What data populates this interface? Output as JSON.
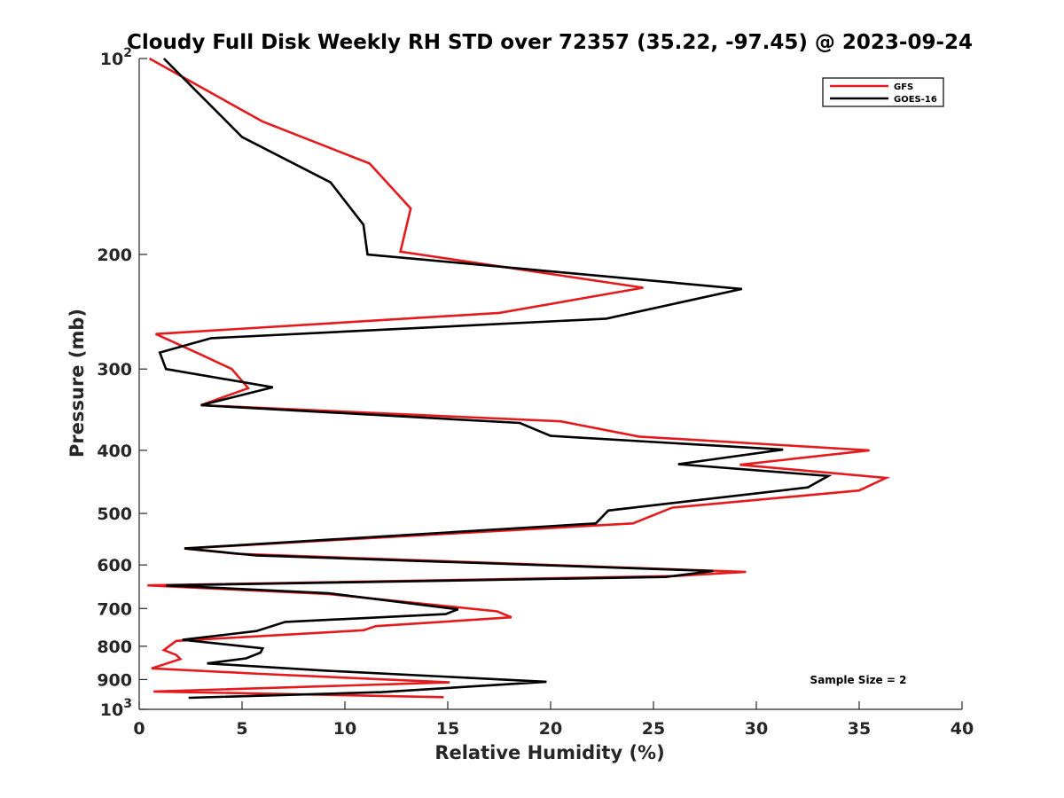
{
  "chart_data": {
    "type": "line",
    "title": "Cloudy Full Disk Weekly RH STD over 72357 (35.22, -97.45) @ 2023-09-24",
    "xlabel": "Relative Humidity (%)",
    "ylabel": "Pressure (mb)",
    "xlim": [
      0,
      40
    ],
    "ylim": [
      100,
      1000
    ],
    "yscale": "log",
    "y_reversed": true,
    "xticks": [
      0,
      5,
      10,
      15,
      20,
      25,
      30,
      35,
      40
    ],
    "yticks": [
      {
        "value": 100,
        "label": "10",
        "sup": "2"
      },
      {
        "value": 200,
        "label": "200"
      },
      {
        "value": 300,
        "label": "300"
      },
      {
        "value": 400,
        "label": "400"
      },
      {
        "value": 500,
        "label": "500"
      },
      {
        "value": 600,
        "label": "600"
      },
      {
        "value": 700,
        "label": "700"
      },
      {
        "value": 800,
        "label": "800"
      },
      {
        "value": 900,
        "label": "900"
      },
      {
        "value": 1000,
        "label": "10",
        "sup": "3"
      }
    ],
    "grid": false,
    "legend_position": "top-right",
    "annotation": "Sample Size = 2",
    "series": [
      {
        "name": "GFS",
        "color": "#e41a1c",
        "points": [
          [
            0.5,
            100
          ],
          [
            6.0,
            125
          ],
          [
            11.2,
            145
          ],
          [
            13.2,
            170
          ],
          [
            12.7,
            198
          ],
          [
            24.5,
            225
          ],
          [
            17.5,
            246
          ],
          [
            0.8,
            265
          ],
          [
            3.0,
            285
          ],
          [
            4.5,
            300
          ],
          [
            5.3,
            321
          ],
          [
            3.0,
            341
          ],
          [
            20.5,
            361
          ],
          [
            24.3,
            381
          ],
          [
            35.5,
            400
          ],
          [
            29.2,
            421
          ],
          [
            36.3,
            441
          ],
          [
            35.0,
            461
          ],
          [
            25.9,
            490
          ],
          [
            24.0,
            518
          ],
          [
            2.2,
            566
          ],
          [
            4.8,
            577
          ],
          [
            29.5,
            615
          ],
          [
            26.0,
            624
          ],
          [
            0.4,
            645
          ],
          [
            9.2,
            665
          ],
          [
            17.4,
            707
          ],
          [
            18.1,
            722
          ],
          [
            11.5,
            745
          ],
          [
            10.9,
            756
          ],
          [
            1.8,
            785
          ],
          [
            1.2,
            811
          ],
          [
            1.8,
            825
          ],
          [
            2.0,
            837
          ],
          [
            0.6,
            865
          ],
          [
            5.9,
            882
          ],
          [
            15.1,
            909
          ],
          [
            0.7,
            939
          ],
          [
            14.8,
            958
          ]
        ]
      },
      {
        "name": "GOES-16",
        "color": "#000000",
        "points": [
          [
            1.2,
            100
          ],
          [
            5.0,
            132
          ],
          [
            9.3,
            155
          ],
          [
            10.9,
            180
          ],
          [
            11.1,
            200
          ],
          [
            29.3,
            226
          ],
          [
            22.7,
            251
          ],
          [
            3.5,
            269
          ],
          [
            1.0,
            283
          ],
          [
            1.3,
            300
          ],
          [
            6.5,
            320
          ],
          [
            3.0,
            341
          ],
          [
            18.5,
            363
          ],
          [
            20.0,
            380
          ],
          [
            31.3,
            399
          ],
          [
            26.2,
            420
          ],
          [
            33.5,
            438
          ],
          [
            32.5,
            456
          ],
          [
            22.8,
            495
          ],
          [
            22.2,
            518
          ],
          [
            2.2,
            566
          ],
          [
            5.7,
            580
          ],
          [
            27.9,
            613
          ],
          [
            25.6,
            626
          ],
          [
            1.3,
            645
          ],
          [
            9.2,
            663
          ],
          [
            15.5,
            702
          ],
          [
            14.9,
            714
          ],
          [
            7.1,
            734
          ],
          [
            5.7,
            758
          ],
          [
            2.1,
            782
          ],
          [
            6.0,
            806
          ],
          [
            5.9,
            818
          ],
          [
            5.2,
            835
          ],
          [
            3.3,
            850
          ],
          [
            9.0,
            872
          ],
          [
            19.8,
            907
          ],
          [
            11.8,
            941
          ],
          [
            2.4,
            960
          ]
        ]
      }
    ]
  }
}
